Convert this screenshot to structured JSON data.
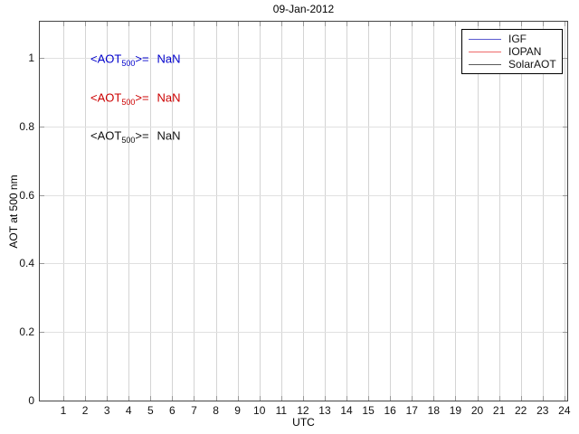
{
  "chart_data": {
    "type": "line",
    "title": "09-Jan-2012",
    "xlabel": "UTC",
    "ylabel": "AOT at 500 nm",
    "xlim": [
      0,
      24.5
    ],
    "ylim": [
      0,
      1.1
    ],
    "grid": true,
    "x_ticks": [
      1,
      2,
      3,
      4,
      5,
      6,
      7,
      8,
      9,
      10,
      11,
      12,
      13,
      14,
      15,
      16,
      17,
      18,
      19,
      20,
      21,
      22,
      23,
      24
    ],
    "y_ticks": [
      0,
      0.2,
      0.4,
      0.6,
      0.8,
      1
    ],
    "y_tick_labels": [
      "0",
      "0.2",
      "0.4",
      "0.6",
      "0.8",
      "1"
    ],
    "legend": {
      "position": "top-right",
      "entries": [
        {
          "label": "IGF",
          "color": "#5b5bd0"
        },
        {
          "label": "IOPAN",
          "color": "#ee6a6a"
        },
        {
          "label": "SolarAOT",
          "color": "#5a5a5a"
        }
      ]
    },
    "series": [
      {
        "name": "IGF",
        "color": "#0000ff",
        "x": [],
        "y": []
      },
      {
        "name": "IOPAN",
        "color": "#ff0000",
        "x": [],
        "y": []
      },
      {
        "name": "SolarAOT",
        "color": "#000000",
        "x": [],
        "y": []
      }
    ],
    "annotations": [
      {
        "prefix": "<AOT",
        "subscript": "500",
        "suffix": ">=",
        "value": "NaN",
        "color": "#0000cc"
      },
      {
        "prefix": "<AOT",
        "subscript": "500",
        "suffix": ">=",
        "value": "NaN",
        "color": "#cc0000"
      },
      {
        "prefix": "<AOT",
        "subscript": "500",
        "suffix": ">=",
        "value": "NaN",
        "color": "#111111"
      }
    ]
  },
  "colors": {
    "axis_border": "#444444",
    "grid_vertical": "#d4d4d4",
    "grid_horizontal": "#e0e0e0",
    "tick_mark": "#999999",
    "background": "#ffffff"
  }
}
